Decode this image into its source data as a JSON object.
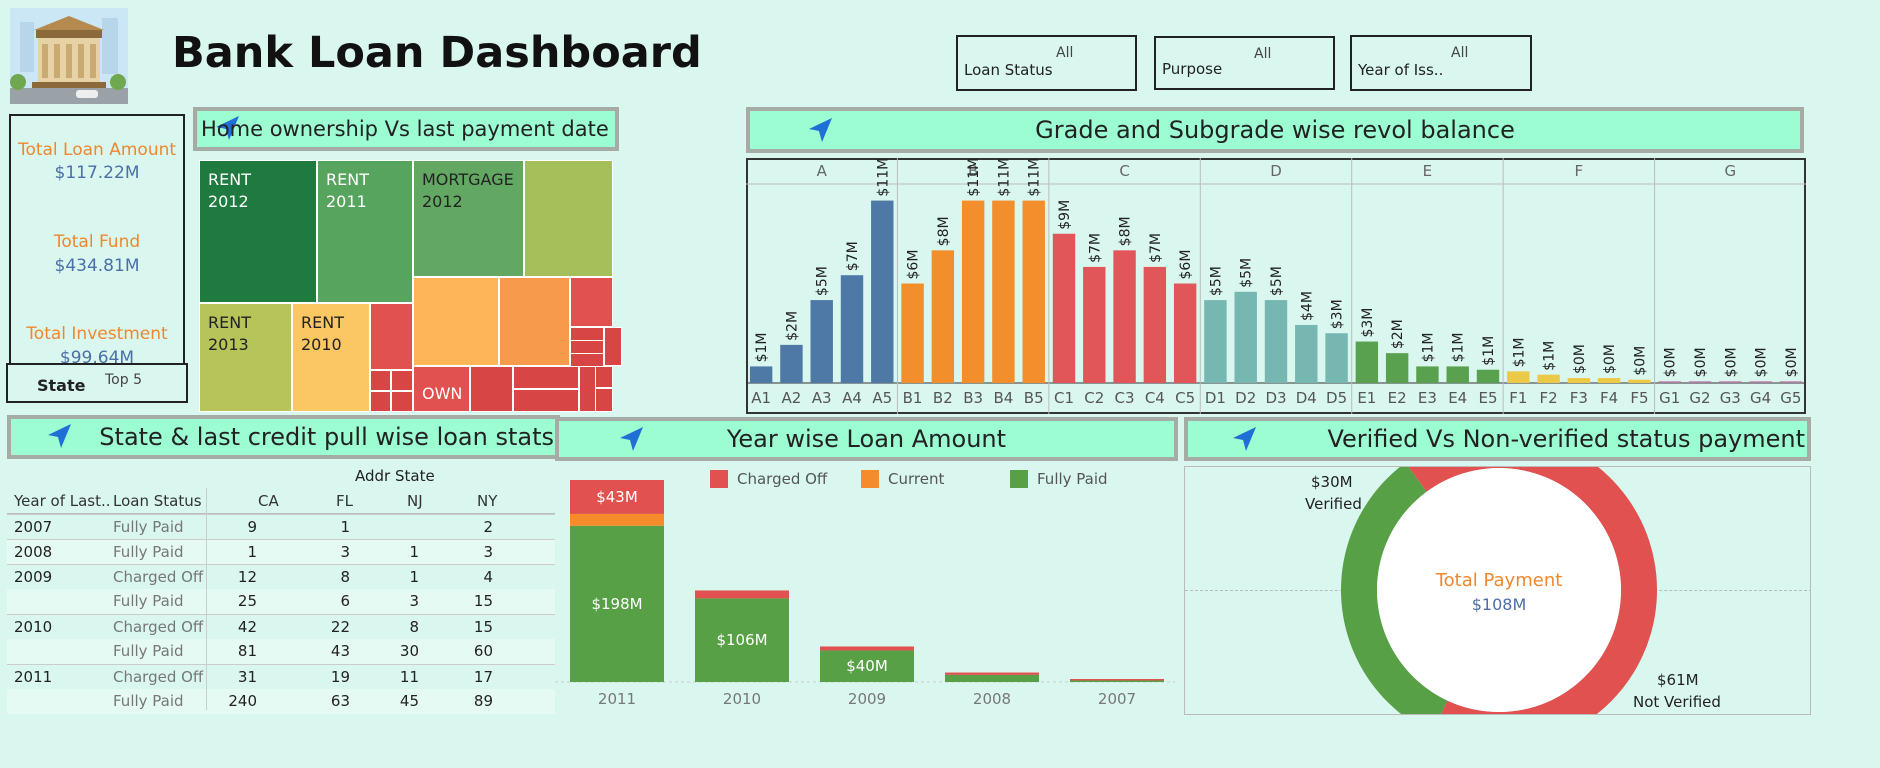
{
  "header": {
    "title": "Bank Loan Dashboard",
    "logo_icon": "bank-building-icon"
  },
  "filters": [
    {
      "label": "Loan Status",
      "value": "All"
    },
    {
      "label": "Purpose",
      "value": "All"
    },
    {
      "label": "Year of Iss..",
      "value": "All"
    }
  ],
  "kpis": [
    {
      "label": "Total Loan Amount",
      "value": "$117.22M"
    },
    {
      "label": "Total Fund",
      "value": "$434.81M"
    },
    {
      "label": "Total Investment",
      "value": "$99.64M"
    }
  ],
  "state_filter": {
    "label": "State",
    "value": "Top 5"
  },
  "treemap": {
    "title": "Home ownership Vs last payment date stats",
    "tiles": [
      {
        "label1": "RENT",
        "label2": "2012",
        "color": "#1e7a3f"
      },
      {
        "label1": "RENT",
        "label2": "2011",
        "color": "#57a45e"
      },
      {
        "label1": "MORTGAGE",
        "label2": "2012",
        "color": "#63a862"
      },
      {
        "label1": "",
        "label2": "",
        "color": "#a5c05a"
      },
      {
        "label1": "RENT",
        "label2": "2013",
        "color": "#b6c459"
      },
      {
        "label1": "RENT",
        "label2": "2010",
        "color": "#fbc762"
      },
      {
        "label1": "OWN",
        "label2": "",
        "color": "#e0514f"
      }
    ]
  },
  "grade_chart": {
    "title": "Grade and Subgrade wise revol balance",
    "grades": [
      "A",
      "B",
      "C",
      "D",
      "E",
      "F",
      "G"
    ]
  },
  "state_table": {
    "title": "State & last credit pull wise loan stats",
    "column_group": "Addr State",
    "headers": [
      "Year of Last..",
      "Loan Status",
      "CA",
      "FL",
      "NJ",
      "NY"
    ],
    "rows": [
      {
        "year": "2007",
        "status": "Fully Paid",
        "CA": "9",
        "FL": "1",
        "NJ": "",
        "NY": "2"
      },
      {
        "year": "2008",
        "status": "Fully Paid",
        "CA": "1",
        "FL": "3",
        "NJ": "1",
        "NY": "3"
      },
      {
        "year": "2009",
        "status": "Charged Off",
        "CA": "12",
        "FL": "8",
        "NJ": "1",
        "NY": "4"
      },
      {
        "year": "",
        "status": "Fully Paid",
        "CA": "25",
        "FL": "6",
        "NJ": "3",
        "NY": "15"
      },
      {
        "year": "2010",
        "status": "Charged Off",
        "CA": "42",
        "FL": "22",
        "NJ": "8",
        "NY": "15"
      },
      {
        "year": "",
        "status": "Fully Paid",
        "CA": "81",
        "FL": "43",
        "NJ": "30",
        "NY": "60"
      },
      {
        "year": "2011",
        "status": "Charged Off",
        "CA": "31",
        "FL": "19",
        "NJ": "11",
        "NY": "17"
      },
      {
        "year": "",
        "status": "Fully Paid",
        "CA": "240",
        "FL": "63",
        "NJ": "45",
        "NY": "89"
      }
    ]
  },
  "year_chart": {
    "title": "Year wise Loan Amount",
    "legend": [
      {
        "name": "Charged Off",
        "color": "#e0514f"
      },
      {
        "name": "Current",
        "color": "#f58b2b"
      },
      {
        "name": "Fully Paid",
        "color": "#57a045"
      }
    ]
  },
  "donut": {
    "title": "Verified  Vs Non-verified status payment",
    "center_label": "Total Payment",
    "center_value": "$108M",
    "verified_value": "$30M",
    "verified_label": "Verified",
    "not_verified_value": "$61M",
    "not_verified_label": "Not Verified"
  },
  "chart_data": [
    {
      "type": "bar",
      "title": "Grade and Subgrade wise revol balance",
      "categories": [
        "A1",
        "A2",
        "A3",
        "A4",
        "A5",
        "B1",
        "B2",
        "B3",
        "B4",
        "B5",
        "C1",
        "C2",
        "C3",
        "C4",
        "C5",
        "D1",
        "D2",
        "D3",
        "D4",
        "D5",
        "E1",
        "E2",
        "E3",
        "E4",
        "E5",
        "F1",
        "F2",
        "F3",
        "F4",
        "F5",
        "G1",
        "G2",
        "G3",
        "G4",
        "G5"
      ],
      "values": [
        1.0,
        2.3,
        5.0,
        6.5,
        11.0,
        6.0,
        8.0,
        11.0,
        11.0,
        11.0,
        9.0,
        7.0,
        8.0,
        7.0,
        6.0,
        5.0,
        5.5,
        5.0,
        3.5,
        3.0,
        2.5,
        1.8,
        1.0,
        1.0,
        0.8,
        0.7,
        0.5,
        0.3,
        0.3,
        0.2,
        0.1,
        0.1,
        0.1,
        0.1,
        0.1
      ],
      "labels": [
        "$1M",
        "$2M",
        "$5M",
        "$7M",
        "$11M",
        "$6M",
        "$8M",
        "$11M",
        "$11M",
        "$11M",
        "$9M",
        "$7M",
        "$8M",
        "$7M",
        "$6M",
        "$5M",
        "$5M",
        "$5M",
        "$4M",
        "$3M",
        "$3M",
        "$2M",
        "$1M",
        "$1M",
        "$1M",
        "$1M",
        "$1M",
        "$0M",
        "$0M",
        "$0M",
        "$0M",
        "$0M",
        "$0M",
        "$0M",
        "$0M"
      ],
      "ylim": [
        0,
        12
      ],
      "colors": {
        "A": "#4e79a7",
        "B": "#f28e2b",
        "C": "#e15759",
        "D": "#76b7b2",
        "E": "#59a14f",
        "F": "#edc948",
        "G": "#b07aa1"
      }
    },
    {
      "type": "bar",
      "title": "Year wise Loan Amount",
      "categories": [
        "2011",
        "2010",
        "2009",
        "2008",
        "2007"
      ],
      "series": [
        {
          "name": "Fully Paid",
          "values": [
            198,
            106,
            40,
            9,
            0.5
          ]
        },
        {
          "name": "Current",
          "values": [
            15,
            0,
            0,
            0,
            0
          ]
        },
        {
          "name": "Charged Off",
          "values": [
            43,
            10,
            5,
            3,
            1
          ]
        }
      ],
      "data_labels": {
        "Fully Paid": [
          "$198M",
          "$106M",
          "$40M",
          "",
          ""
        ],
        "Charged Off": [
          "$43M",
          "",
          "",
          "",
          ""
        ]
      },
      "ylim": [
        0,
        256
      ]
    },
    {
      "type": "pie",
      "title": "Verified  Vs Non-verified status payment",
      "categories": [
        "Verified",
        "Not Verified"
      ],
      "values": [
        30,
        61
      ]
    }
  ]
}
